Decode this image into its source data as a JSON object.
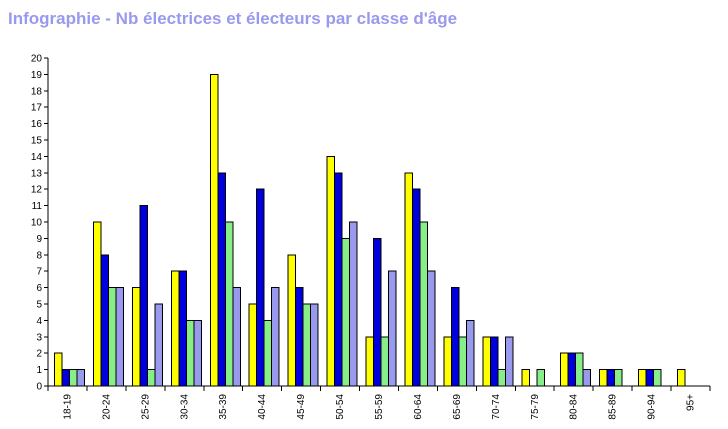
{
  "title": "Infographie - Nb électrices et électeurs par classe d'âge",
  "colors": {
    "title": "#9999ee",
    "series": [
      "#ffff00",
      "#0000dd",
      "#88ee88",
      "#9999ee"
    ],
    "axis": "#000000",
    "background": "#ffffff"
  },
  "chart_data": {
    "type": "bar",
    "title": "Infographie - Nb électrices et électeurs par classe d'âge",
    "xlabel": "",
    "ylabel": "",
    "ylim": [
      0,
      20
    ],
    "y_ticks": [
      0,
      1,
      2,
      3,
      4,
      5,
      6,
      7,
      8,
      9,
      10,
      11,
      12,
      13,
      14,
      15,
      16,
      17,
      18,
      19,
      20
    ],
    "grid": false,
    "legend": "none",
    "categories": [
      "18-19",
      "20-24",
      "25-29",
      "30-34",
      "35-39",
      "40-44",
      "45-49",
      "50-54",
      "55-59",
      "60-64",
      "65-69",
      "70-74",
      "75-79",
      "80-84",
      "85-89",
      "90-94",
      "95+"
    ],
    "series": [
      {
        "color": "#ffff00",
        "values": [
          2,
          10,
          6,
          7,
          19,
          5,
          8,
          14,
          3,
          13,
          3,
          3,
          1,
          2,
          1,
          1,
          1
        ]
      },
      {
        "color": "#0000dd",
        "values": [
          1,
          8,
          11,
          7,
          13,
          12,
          6,
          13,
          9,
          12,
          6,
          3,
          0,
          2,
          1,
          1,
          0
        ]
      },
      {
        "color": "#88ee88",
        "values": [
          1,
          6,
          1,
          4,
          10,
          4,
          5,
          9,
          3,
          10,
          3,
          1,
          1,
          2,
          1,
          1,
          0
        ]
      },
      {
        "color": "#9999ee",
        "values": [
          1,
          6,
          5,
          4,
          6,
          6,
          5,
          10,
          7,
          7,
          4,
          3,
          0,
          1,
          0,
          0,
          0
        ]
      }
    ]
  }
}
